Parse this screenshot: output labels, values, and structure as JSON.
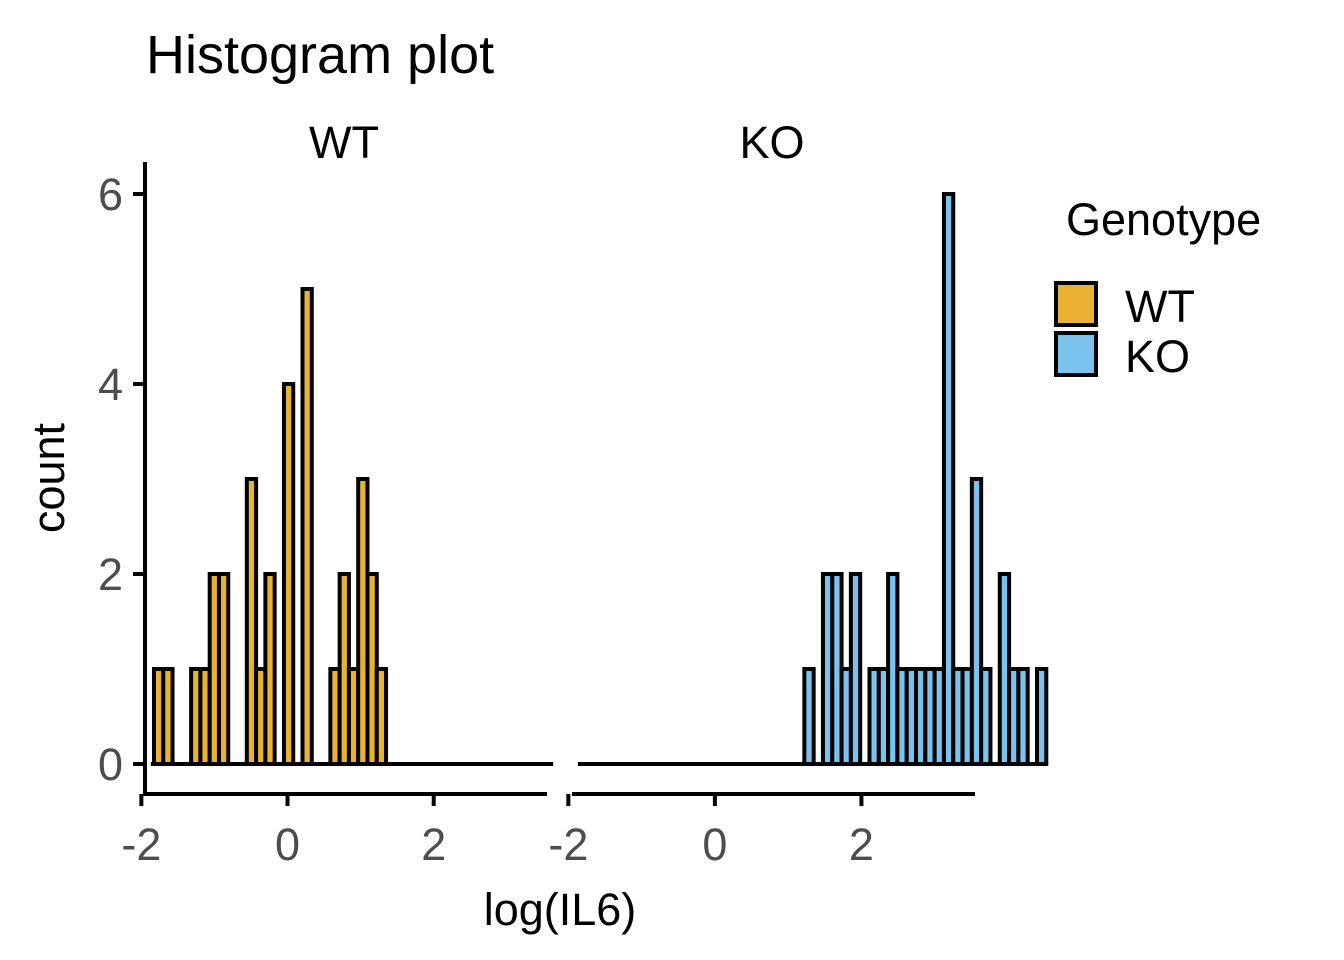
{
  "chart_data": {
    "type": "bar",
    "title": "Histogram plot",
    "xlabel": "log(IL6)",
    "ylabel": "count",
    "xlim": [
      -1.95,
      3.55
    ],
    "ylim": [
      0,
      6
    ],
    "x_ticks": [
      -2,
      0,
      2
    ],
    "y_ticks": [
      0,
      2,
      4,
      6
    ],
    "bin_width": 0.127,
    "bin_start": -1.827,
    "grid": false,
    "legend": {
      "title": "Genotype",
      "position": "right",
      "entries": [
        {
          "label": "WT",
          "color": "#E9B232"
        },
        {
          "label": "KO",
          "color": "#79C3EE"
        }
      ]
    },
    "series": [
      {
        "name": "WT",
        "color": "#E9B232",
        "counts": [
          1,
          1,
          0,
          0,
          1,
          1,
          2,
          2,
          0,
          0,
          3,
          1,
          2,
          0,
          4,
          0,
          5,
          0,
          0,
          1,
          2,
          1,
          3,
          2,
          1,
          0,
          0,
          0,
          0,
          0,
          0,
          0,
          0,
          0,
          0,
          0,
          0,
          0,
          0,
          0,
          0,
          0,
          0
        ]
      },
      {
        "name": "KO",
        "color": "#79C3EE",
        "counts": [
          0,
          0,
          0,
          0,
          0,
          0,
          0,
          0,
          0,
          0,
          0,
          0,
          0,
          0,
          0,
          0,
          0,
          0,
          0,
          0,
          0,
          0,
          0,
          0,
          1,
          0,
          2,
          2,
          1,
          2,
          0,
          1,
          1,
          2,
          1,
          1,
          1,
          1,
          1,
          6,
          1,
          1,
          3,
          1,
          0,
          2,
          1,
          1,
          0,
          1
        ]
      }
    ]
  }
}
